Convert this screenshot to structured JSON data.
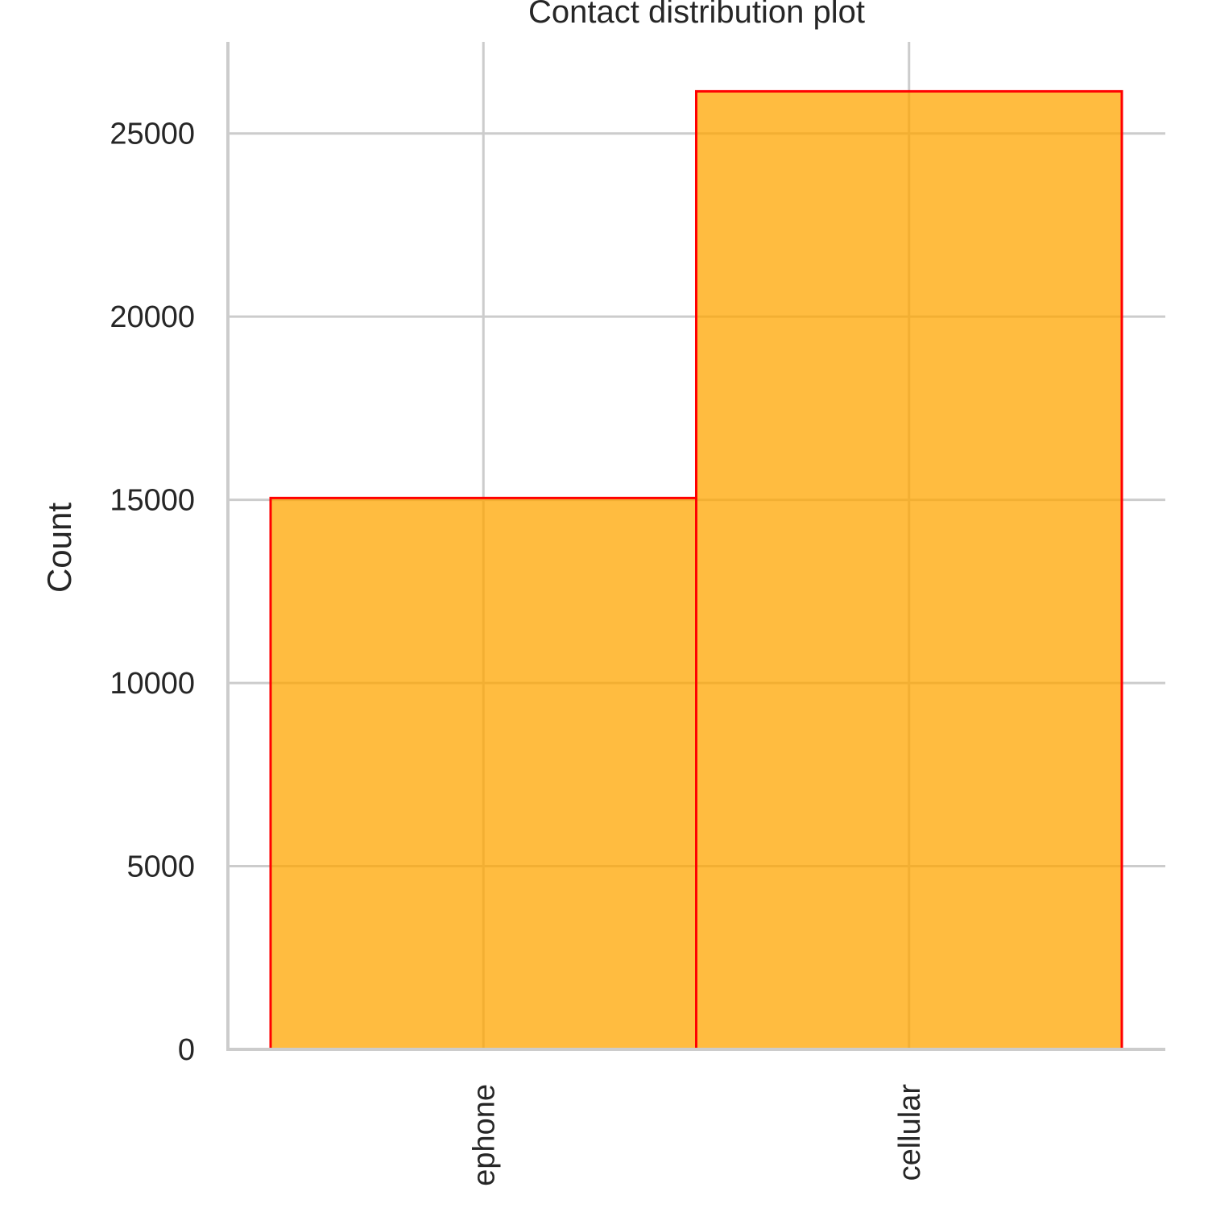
{
  "chart_data": {
    "type": "bar",
    "title": "Contact distribution plot",
    "xlabel": "",
    "ylabel": "Count",
    "categories": [
      "telephone",
      "cellular"
    ],
    "category_labels_visible": [
      "ephone",
      "cellular"
    ],
    "values": [
      15050,
      26150
    ],
    "ylim": [
      0,
      27500
    ],
    "yticks": [
      0,
      5000,
      10000,
      15000,
      20000,
      25000
    ],
    "ytick_labels": [
      "0",
      "5000",
      "10000",
      "15000",
      "20000",
      "25000"
    ],
    "grid": true,
    "legend": null,
    "colors": {
      "bar_fill": "#ffa500",
      "bar_fill_opacity": 0.75,
      "bar_edge": "#ff0000",
      "grid": "#cccccc",
      "text": "#262626"
    }
  }
}
